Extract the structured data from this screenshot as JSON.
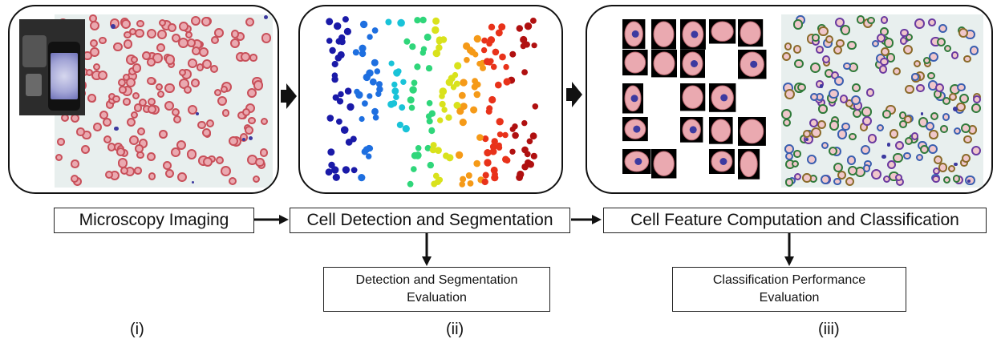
{
  "stages": {
    "microscopy": "Microscopy Imaging",
    "detection": "Cell Detection and Segmentation",
    "feature": "Cell Feature Computation and Classification"
  },
  "evaluations": {
    "detection_line1": "Detection and Segmentation",
    "detection_line2": "Evaluation",
    "classification_line1": "Classification Performance",
    "classification_line2": "Evaluation"
  },
  "panel_labels": {
    "i": "(i)",
    "ii": "(ii)",
    "iii": "(iii)"
  },
  "colors": {
    "rbc_fill": "#eaa9b0",
    "rbc_border": "#c8505a",
    "parasite": "#3c3aa0",
    "smear_background": "#e8efee",
    "cluster_palette": [
      "#1a1aa8",
      "#1e6fe0",
      "#19c3d8",
      "#2fd67a",
      "#d9e21c",
      "#f59a18",
      "#e8321a",
      "#b01010"
    ]
  },
  "icons": {
    "phone": "smartphone-on-microscope-icon",
    "arrow": "arrow-icon"
  }
}
